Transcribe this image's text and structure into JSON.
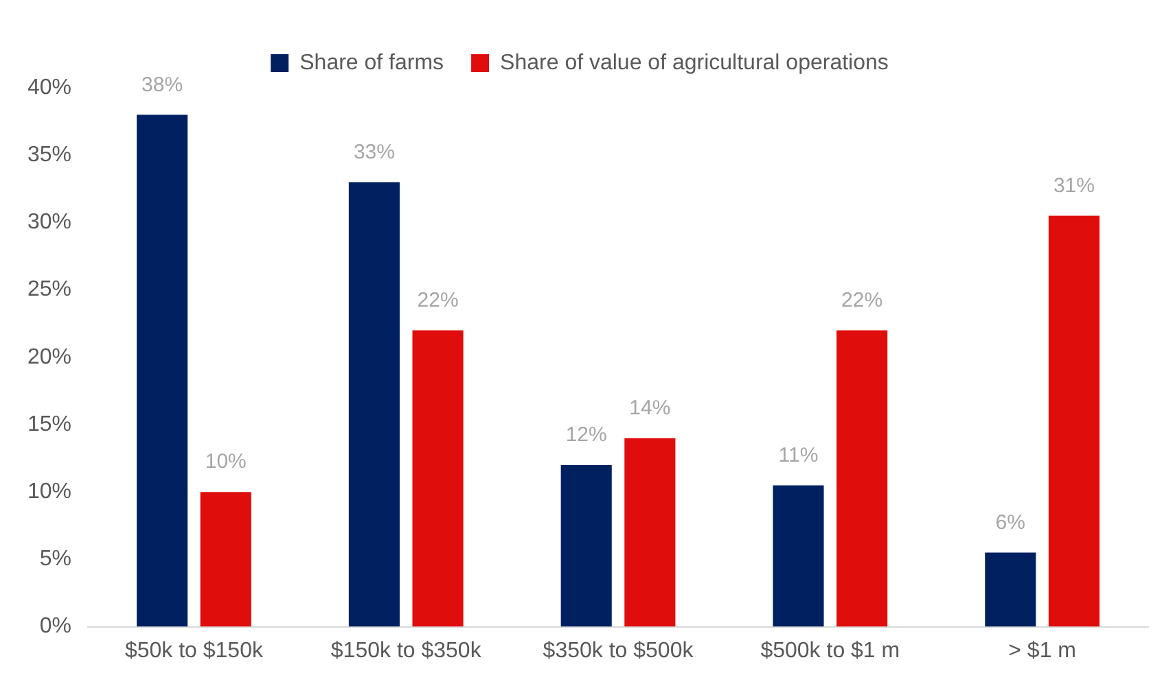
{
  "chart_data": {
    "type": "bar",
    "categories": [
      "$50k to $150k",
      "$150k to $350k",
      "$350k to $500k",
      "$500k to $1 m",
      "> $1 m"
    ],
    "series": [
      {
        "name": "Share of farms",
        "color": "#002060",
        "values": [
          38,
          33,
          12,
          10.5,
          5.5
        ],
        "value_labels": [
          "38%",
          "33%",
          "12%",
          "11%",
          "6%"
        ]
      },
      {
        "name": "Share of value of agricultural operations",
        "color": "#e00d0d",
        "values": [
          10,
          22,
          14,
          22,
          30.5
        ],
        "value_labels": [
          "10%",
          "22%",
          "14%",
          "22%",
          "31%"
        ]
      }
    ],
    "ylim": [
      0,
      40
    ],
    "yticks": [
      {
        "value": 0,
        "label": "0%"
      },
      {
        "value": 5,
        "label": "5%"
      },
      {
        "value": 10,
        "label": "10%"
      },
      {
        "value": 15,
        "label": "15%"
      },
      {
        "value": 20,
        "label": "20%"
      },
      {
        "value": 25,
        "label": "25%"
      },
      {
        "value": 30,
        "label": "30%"
      },
      {
        "value": 35,
        "label": "35%"
      },
      {
        "value": 40,
        "label": "40%"
      }
    ],
    "grid": false,
    "legend": "top"
  }
}
